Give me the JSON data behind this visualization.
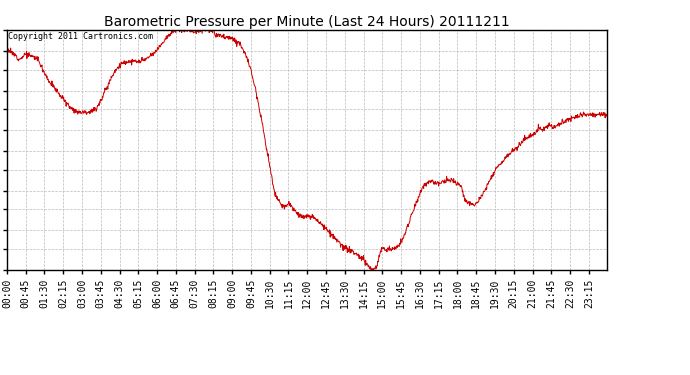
{
  "title": "Barometric Pressure per Minute (Last 24 Hours) 20111211",
  "copyright": "Copyright 2011 Cartronics.com",
  "line_color": "#cc0000",
  "background_color": "#ffffff",
  "grid_color": "#bbbbbb",
  "ylim": [
    30.188,
    30.279
  ],
  "yticks": [
    30.188,
    30.196,
    30.203,
    30.211,
    30.218,
    30.226,
    30.233,
    30.241,
    30.249,
    30.256,
    30.264,
    30.271,
    30.279
  ],
  "xtick_labels": [
    "00:00",
    "00:45",
    "01:30",
    "02:15",
    "03:00",
    "03:45",
    "04:30",
    "05:15",
    "06:00",
    "06:45",
    "07:30",
    "08:15",
    "09:00",
    "09:45",
    "10:30",
    "11:15",
    "12:00",
    "12:45",
    "13:30",
    "14:15",
    "15:00",
    "15:45",
    "16:30",
    "17:15",
    "18:00",
    "18:45",
    "19:30",
    "20:15",
    "21:00",
    "21:45",
    "22:30",
    "23:15"
  ],
  "waypoints": [
    [
      0.0,
      30.272
    ],
    [
      0.01,
      30.27
    ],
    [
      0.022,
      30.268
    ],
    [
      0.031,
      30.27
    ],
    [
      0.042,
      30.269
    ],
    [
      0.052,
      30.268
    ],
    [
      0.062,
      30.263
    ],
    [
      0.072,
      30.259
    ],
    [
      0.083,
      30.256
    ],
    [
      0.09,
      30.254
    ],
    [
      0.1,
      30.251
    ],
    [
      0.11,
      30.249
    ],
    [
      0.118,
      30.248
    ],
    [
      0.128,
      30.248
    ],
    [
      0.138,
      30.248
    ],
    [
      0.148,
      30.249
    ],
    [
      0.158,
      30.253
    ],
    [
      0.168,
      30.258
    ],
    [
      0.178,
      30.263
    ],
    [
      0.19,
      30.266
    ],
    [
      0.2,
      30.267
    ],
    [
      0.21,
      30.267
    ],
    [
      0.22,
      30.267
    ],
    [
      0.233,
      30.268
    ],
    [
      0.245,
      30.27
    ],
    [
      0.255,
      30.273
    ],
    [
      0.265,
      30.276
    ],
    [
      0.275,
      30.278
    ],
    [
      0.285,
      30.279
    ],
    [
      0.295,
      30.279
    ],
    [
      0.305,
      30.279
    ],
    [
      0.312,
      30.278
    ],
    [
      0.32,
      30.279
    ],
    [
      0.33,
      30.279
    ],
    [
      0.34,
      30.279
    ],
    [
      0.348,
      30.277
    ],
    [
      0.356,
      30.277
    ],
    [
      0.364,
      30.276
    ],
    [
      0.372,
      30.276
    ],
    [
      0.38,
      30.275
    ],
    [
      0.388,
      30.274
    ],
    [
      0.395,
      30.271
    ],
    [
      0.405,
      30.265
    ],
    [
      0.415,
      30.256
    ],
    [
      0.425,
      30.244
    ],
    [
      0.435,
      30.231
    ],
    [
      0.445,
      30.218
    ],
    [
      0.455,
      30.213
    ],
    [
      0.462,
      30.212
    ],
    [
      0.47,
      30.213
    ],
    [
      0.478,
      30.211
    ],
    [
      0.486,
      30.209
    ],
    [
      0.494,
      30.208
    ],
    [
      0.502,
      30.208
    ],
    [
      0.51,
      30.208
    ],
    [
      0.518,
      30.207
    ],
    [
      0.526,
      30.205
    ],
    [
      0.534,
      30.203
    ],
    [
      0.542,
      30.201
    ],
    [
      0.55,
      30.199
    ],
    [
      0.558,
      30.197
    ],
    [
      0.566,
      30.196
    ],
    [
      0.574,
      30.195
    ],
    [
      0.582,
      30.194
    ],
    [
      0.588,
      30.193
    ],
    [
      0.594,
      30.192
    ],
    [
      0.6,
      30.19
    ],
    [
      0.605,
      30.189
    ],
    [
      0.608,
      30.188
    ],
    [
      0.612,
      30.188
    ],
    [
      0.616,
      30.189
    ],
    [
      0.62,
      30.193
    ],
    [
      0.624,
      30.196
    ],
    [
      0.628,
      30.196
    ],
    [
      0.636,
      30.196
    ],
    [
      0.644,
      30.196
    ],
    [
      0.652,
      30.197
    ],
    [
      0.66,
      30.2
    ],
    [
      0.668,
      30.205
    ],
    [
      0.676,
      30.21
    ],
    [
      0.684,
      30.215
    ],
    [
      0.692,
      30.219
    ],
    [
      0.7,
      30.221
    ],
    [
      0.708,
      30.222
    ],
    [
      0.716,
      30.221
    ],
    [
      0.724,
      30.221
    ],
    [
      0.732,
      30.222
    ],
    [
      0.74,
      30.222
    ],
    [
      0.748,
      30.221
    ],
    [
      0.756,
      30.22
    ],
    [
      0.764,
      30.214
    ],
    [
      0.772,
      30.213
    ],
    [
      0.78,
      30.213
    ],
    [
      0.788,
      30.215
    ],
    [
      0.796,
      30.218
    ],
    [
      0.806,
      30.223
    ],
    [
      0.816,
      30.227
    ],
    [
      0.826,
      30.229
    ],
    [
      0.836,
      30.232
    ],
    [
      0.846,
      30.234
    ],
    [
      0.856,
      30.236
    ],
    [
      0.864,
      30.238
    ],
    [
      0.872,
      30.239
    ],
    [
      0.88,
      30.24
    ],
    [
      0.886,
      30.242
    ],
    [
      0.892,
      30.241
    ],
    [
      0.898,
      30.242
    ],
    [
      0.904,
      30.243
    ],
    [
      0.91,
      30.242
    ],
    [
      0.918,
      30.243
    ],
    [
      0.926,
      30.244
    ],
    [
      0.934,
      30.245
    ],
    [
      0.942,
      30.246
    ],
    [
      0.95,
      30.246
    ],
    [
      0.958,
      30.247
    ],
    [
      0.966,
      30.247
    ],
    [
      0.974,
      30.247
    ],
    [
      0.982,
      30.247
    ],
    [
      0.99,
      30.247
    ],
    [
      1.0,
      30.247
    ]
  ]
}
